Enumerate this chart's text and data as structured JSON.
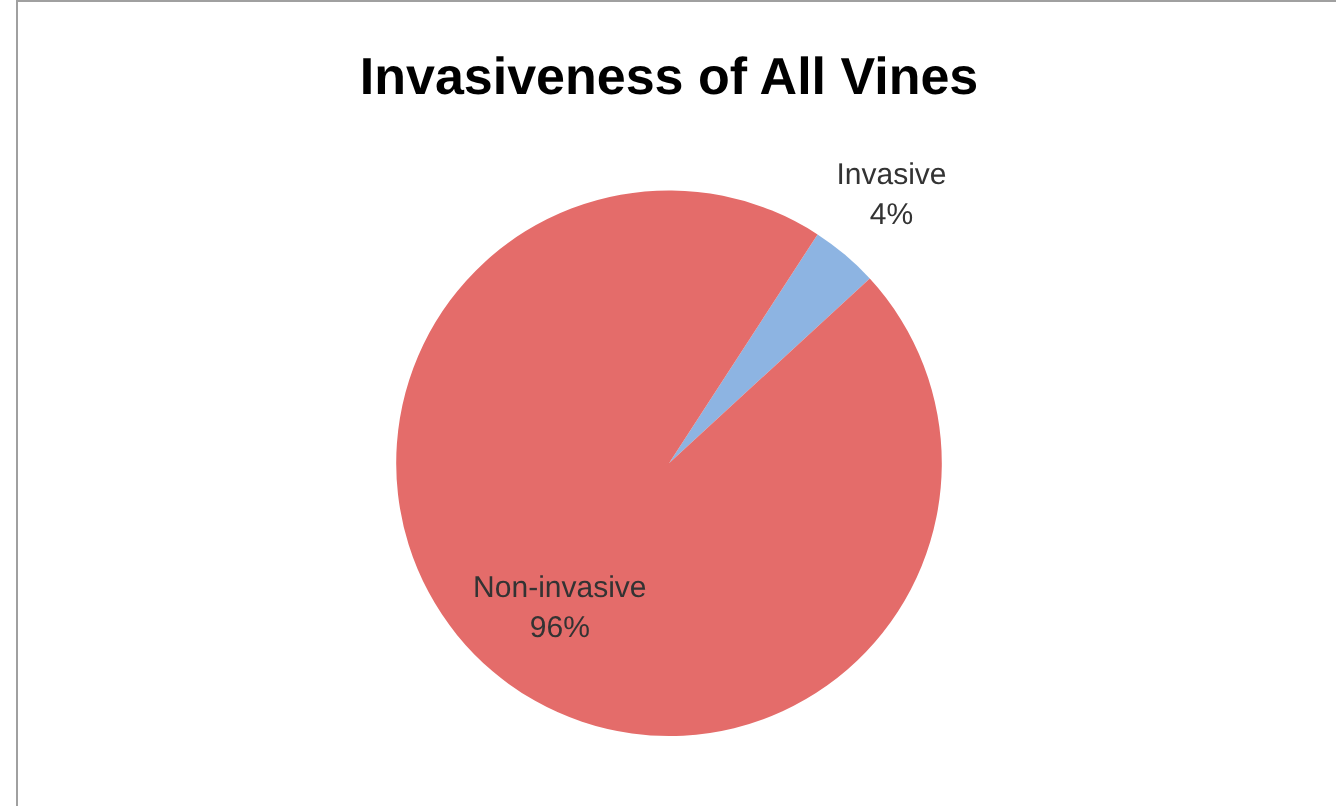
{
  "chart_data": {
    "type": "pie",
    "title": "Invasiveness of All Vines",
    "categories": [
      "Invasive",
      "Non-invasive"
    ],
    "values": [
      4,
      96
    ],
    "colors": [
      "#8db4e2",
      "#e46c6a"
    ],
    "value_labels": [
      "4%",
      "96%"
    ],
    "legend": false
  }
}
